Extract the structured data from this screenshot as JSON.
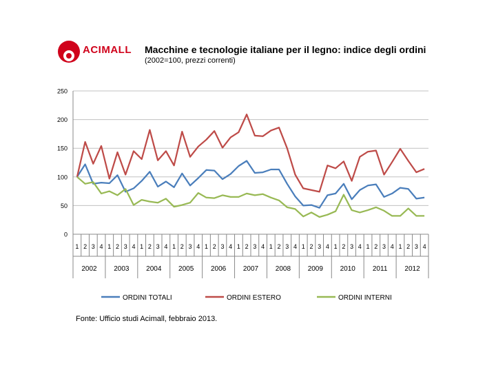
{
  "brand": {
    "name": "ACIMALL"
  },
  "chart_data": {
    "type": "line",
    "title": "Macchine e tecnologie italiane per il legno: indice degli ordini",
    "subtitle": "(2002=100, prezzi correnti)",
    "ylim": [
      0,
      250
    ],
    "yticks": [
      0,
      50,
      100,
      150,
      200,
      250
    ],
    "quarters": [
      "1",
      "2",
      "3",
      "4",
      "1",
      "2",
      "3",
      "4",
      "1",
      "2",
      "3",
      "4",
      "1",
      "2",
      "3",
      "4",
      "1",
      "2",
      "3",
      "4",
      "1",
      "2",
      "3",
      "4",
      "1",
      "2",
      "3",
      "4",
      "1",
      "2",
      "3",
      "4",
      "1",
      "2",
      "3",
      "4",
      "1",
      "2",
      "3",
      "4",
      "1",
      "2",
      "3",
      "4"
    ],
    "years": [
      "2002",
      "2003",
      "2004",
      "2005",
      "2006",
      "2007",
      "2008",
      "2009",
      "2010",
      "2011",
      "2012"
    ],
    "grid": true,
    "legend_position": "bottom",
    "series": [
      {
        "name": "ORDINI TOTALI",
        "color": "#4a7ebb",
        "values": [
          100,
          122,
          88,
          90,
          89,
          103,
          74,
          80,
          93,
          109,
          83,
          92,
          82,
          106,
          85,
          98,
          112,
          111,
          96,
          105,
          119,
          128,
          107,
          108,
          113,
          113,
          88,
          66,
          50,
          51,
          46,
          68,
          71,
          88,
          61,
          77,
          85,
          87,
          65,
          71,
          81,
          79,
          62,
          64
        ]
      },
      {
        "name": "ORDINI ESTERO",
        "color": "#be4b48",
        "values": [
          100,
          161,
          123,
          154,
          97,
          143,
          104,
          145,
          131,
          182,
          129,
          145,
          120,
          179,
          135,
          153,
          165,
          180,
          151,
          169,
          178,
          209,
          172,
          171,
          181,
          186,
          150,
          104,
          80,
          77,
          74,
          120,
          115,
          127,
          93,
          135,
          144,
          146,
          104,
          126,
          149,
          128,
          108,
          114
        ]
      },
      {
        "name": "ORDINI INTERNI",
        "color": "#98b954",
        "values": [
          100,
          88,
          91,
          71,
          75,
          68,
          79,
          51,
          60,
          57,
          55,
          62,
          48,
          51,
          55,
          72,
          64,
          63,
          68,
          65,
          65,
          71,
          68,
          70,
          64,
          59,
          47,
          44,
          31,
          38,
          30,
          34,
          40,
          69,
          42,
          38,
          42,
          47,
          41,
          32,
          32,
          45,
          32,
          32
        ]
      }
    ]
  },
  "source": "Fonte: Ufficio studi Acimall, febbraio 2013."
}
